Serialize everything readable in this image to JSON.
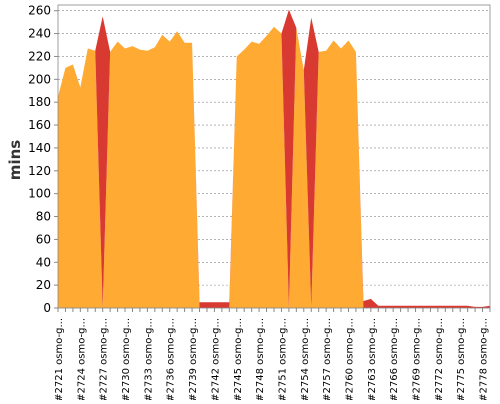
{
  "chart_data": {
    "type": "area",
    "stacked": true,
    "title": "",
    "xlabel": "",
    "ylabel": "mins",
    "ylim": [
      0,
      265
    ],
    "yticks": [
      0,
      20,
      40,
      60,
      80,
      100,
      120,
      140,
      160,
      180,
      200,
      220,
      240,
      260
    ],
    "grid": true,
    "legend": "none",
    "categories": [
      "#2721 osmo-g...",
      "#2722 osmo-g...",
      "#2723 osmo-g...",
      "#2724 osmo-g...",
      "#2725 osmo-g...",
      "#2726 osmo-g...",
      "#2727 osmo-g...",
      "#2728 osmo-g...",
      "#2729 osmo-g...",
      "#2730 osmo-g...",
      "#2731 osmo-g...",
      "#2732 osmo-g...",
      "#2733 osmo-g...",
      "#2734 osmo-g...",
      "#2735 osmo-g...",
      "#2736 osmo-g...",
      "#2737 osmo-g...",
      "#2738 osmo-g...",
      "#2739 osmo-g...",
      "#2740 osmo-g...",
      "#2741 osmo-g...",
      "#2742 osmo-g...",
      "#2743 osmo-g...",
      "#2744 osmo-g...",
      "#2745 osmo-g...",
      "#2746 osmo-g...",
      "#2747 osmo-g...",
      "#2748 osmo-g...",
      "#2749 osmo-g...",
      "#2750 osmo-g...",
      "#2751 osmo-g...",
      "#2752 osmo-g...",
      "#2753 osmo-g...",
      "#2754 osmo-g...",
      "#2755 osmo-g...",
      "#2756 osmo-g...",
      "#2757 osmo-g...",
      "#2758 osmo-g...",
      "#2759 osmo-g...",
      "#2760 osmo-g...",
      "#2761 osmo-g...",
      "#2762 osmo-g...",
      "#2763 osmo-g...",
      "#2764 osmo-g...",
      "#2765 osmo-g...",
      "#2766 osmo-g...",
      "#2767 osmo-g...",
      "#2768 osmo-g...",
      "#2769 osmo-g...",
      "#2770 osmo-g...",
      "#2771 osmo-g...",
      "#2772 osmo-g...",
      "#2773 osmo-g...",
      "#2774 osmo-g...",
      "#2775 osmo-g...",
      "#2776 osmo-g...",
      "#2777 osmo-g...",
      "#2778 osmo-g...",
      "#2779 osmo-g..."
    ],
    "shown_tick_labels": [
      "#2721 osmo-g...",
      "#2724 osmo-g...",
      "#2727 osmo-g...",
      "#2730 osmo-g...",
      "#2733 osmo-g...",
      "#2736 osmo-g...",
      "#2739 osmo-g...",
      "#2742 osmo-g...",
      "#2745 osmo-g...",
      "#2748 osmo-g...",
      "#2751 osmo-g...",
      "#2754 osmo-g...",
      "#2757 osmo-g...",
      "#2760 osmo-g...",
      "#2763 osmo-g...",
      "#2766 osmo-g...",
      "#2769 osmo-g...",
      "#2772 osmo-g...",
      "#2775 osmo-g...",
      "#2778 osmo-g..."
    ],
    "series": [
      {
        "color": "#ffaa33",
        "values": [
          185,
          210,
          213,
          193,
          227,
          225,
          0,
          224,
          233,
          227,
          229,
          226,
          225,
          228,
          239,
          233,
          242,
          232,
          232,
          0,
          0,
          0,
          0,
          0,
          220,
          226,
          233,
          231,
          238,
          246,
          240,
          0,
          245,
          208,
          0,
          224,
          225,
          234,
          227,
          234,
          224,
          0,
          0,
          0,
          0,
          0,
          0,
          0,
          0,
          0,
          0,
          0,
          0,
          0,
          0,
          0,
          0,
          0,
          0
        ]
      },
      {
        "color": "#d83a32",
        "values": [
          0,
          0,
          0,
          0,
          0,
          0,
          255,
          0,
          0,
          0,
          0,
          0,
          0,
          0,
          0,
          0,
          0,
          0,
          0,
          5,
          5,
          5,
          5,
          5,
          0,
          0,
          0,
          0,
          0,
          0,
          0,
          261,
          0,
          0,
          254,
          0,
          0,
          0,
          0,
          0,
          0,
          6,
          8,
          2,
          2,
          2,
          2,
          2,
          2,
          2,
          2,
          2,
          2,
          2,
          2,
          2,
          1,
          1,
          2
        ]
      }
    ]
  },
  "colors": {
    "background": "#ffffff",
    "plot_border": "#888888",
    "gridline": "#888888",
    "axis_text": "#000000"
  }
}
